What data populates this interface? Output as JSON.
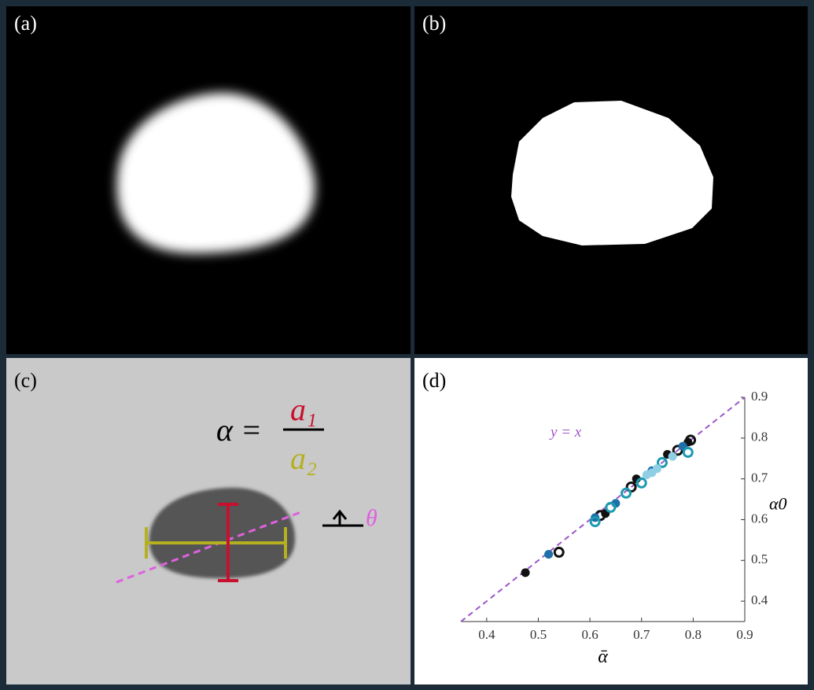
{
  "panels": {
    "a": {
      "label": "(a)"
    },
    "b": {
      "label": "(b)"
    },
    "c": {
      "label": "(c)",
      "formula": {
        "lhs": "α =",
        "numerator": "a₁",
        "denominator": "a₂"
      },
      "angle_label": "θ"
    },
    "d": {
      "label": "(d)"
    }
  },
  "chart_data": {
    "type": "scatter",
    "x_label": "ᾱ",
    "y_label": "α0",
    "xlim": [
      0.35,
      0.9
    ],
    "ylim": [
      0.35,
      0.9
    ],
    "xticks": [
      0.4,
      0.5,
      0.6,
      0.7,
      0.8,
      0.9
    ],
    "yticks": [
      0.4,
      0.5,
      0.6,
      0.7,
      0.8,
      0.9
    ],
    "reference_line": {
      "label": "y = x",
      "color": "#9b55c8"
    },
    "series": [
      {
        "color": "#111111",
        "marker": "filled",
        "x": [
          0.475,
          0.63,
          0.69,
          0.75,
          0.79
        ],
        "values": [
          0.47,
          0.615,
          0.7,
          0.76,
          0.79
        ]
      },
      {
        "color": "#111111",
        "marker": "open",
        "x": [
          0.54,
          0.62,
          0.68,
          0.77,
          0.795
        ],
        "values": [
          0.52,
          0.61,
          0.68,
          0.77,
          0.795
        ]
      },
      {
        "color": "#1f6fa8",
        "marker": "filled",
        "x": [
          0.52,
          0.61,
          0.65,
          0.72,
          0.78
        ],
        "values": [
          0.515,
          0.605,
          0.64,
          0.72,
          0.78
        ]
      },
      {
        "color": "#1a9bb0",
        "marker": "open",
        "x": [
          0.61,
          0.64,
          0.67,
          0.7,
          0.74,
          0.79
        ],
        "values": [
          0.595,
          0.63,
          0.665,
          0.69,
          0.74,
          0.765
        ]
      },
      {
        "color": "#8ecfe6",
        "marker": "filled",
        "x": [
          0.71,
          0.72,
          0.73,
          0.76
        ],
        "values": [
          0.71,
          0.715,
          0.725,
          0.755
        ]
      }
    ]
  }
}
